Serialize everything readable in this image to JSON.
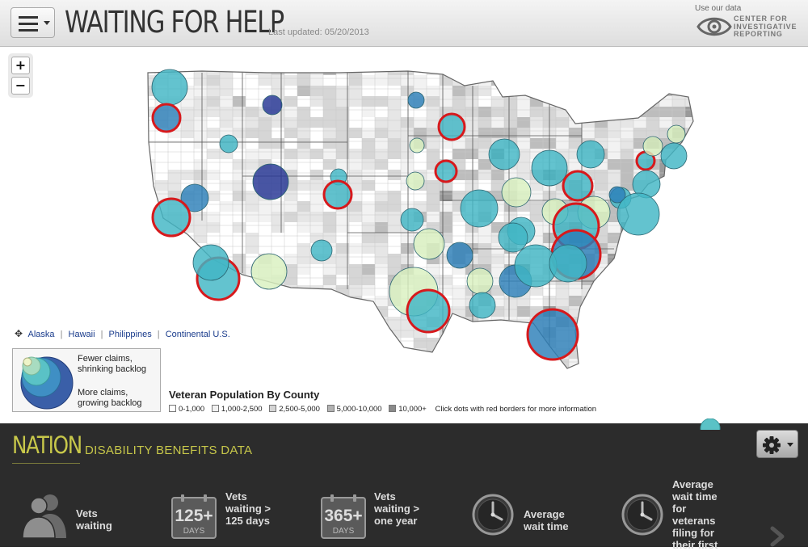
{
  "header": {
    "title": "WAITING FOR HELP",
    "last_updated": "Last updated: 05/20/2013",
    "use_data": "Use our data",
    "logo_lines": [
      "CENTER FOR",
      "INVESTIGATIVE",
      "REPORTING"
    ]
  },
  "map": {
    "zoom_in": "+",
    "zoom_out": "−",
    "region_links": [
      "Alaska",
      "Hawaii",
      "Philippines",
      "Continental U.S."
    ],
    "bubble_legend": {
      "fewer": "Fewer claims, shrinking backlog",
      "more": "More claims, growing backlog"
    },
    "veteran_population": {
      "title": "Veteran Population By County",
      "bins": [
        "0-1,000",
        "1,000-2,500",
        "2,500-5,000",
        "5,000-10,000",
        "10,000+"
      ],
      "note": "Click dots with red borders for more information"
    },
    "colors": {
      "highlight_border": "#d7191c",
      "bubble_light": "#d9f0c0",
      "bubble_teal": "#41b6c4",
      "bubble_blue": "#2c7fb8",
      "bubble_dark": "#253494"
    }
  },
  "panel": {
    "nation": "NATION",
    "subtitle": "DISABILITY BENEFITS DATA",
    "stats": [
      {
        "icon": "veterans-icon",
        "label": "Vets\nwaiting"
      },
      {
        "icon": "calendar-125-icon",
        "badge": "125+",
        "badge_sub": "DAYS",
        "label": "Vets\nwaiting >\n125 days"
      },
      {
        "icon": "calendar-365-icon",
        "badge": "365+",
        "badge_sub": "DAYS",
        "label": "Vets\nwaiting >\none year"
      },
      {
        "icon": "clock-icon",
        "label": "Average\nwait time"
      },
      {
        "icon": "clock-icon",
        "label": "Average\nwait time\nfor\nveterans\nfiling for\ntheir first"
      }
    ]
  }
}
